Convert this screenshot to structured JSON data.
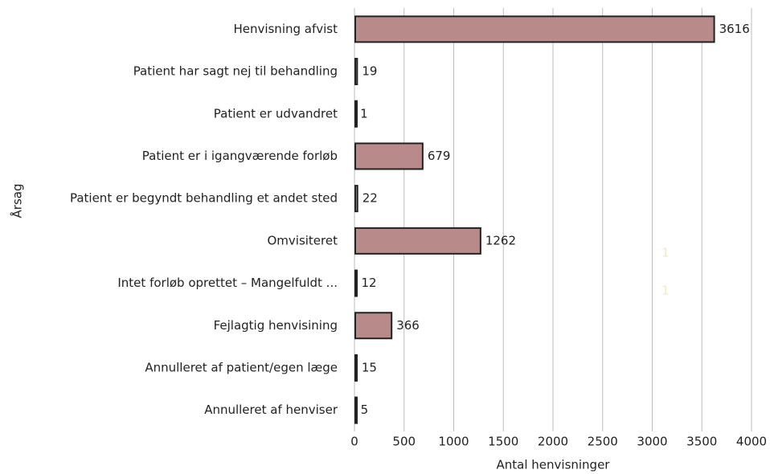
{
  "chart_data": {
    "type": "bar",
    "orientation": "horizontal",
    "categories": [
      "Henvisning afvist",
      "Patient har sagt nej til behandling",
      "Patient er udvandret",
      "Patient er i igangværende forløb",
      "Patient er begyndt behandling et andet sted",
      "Omvisiteret",
      "Intet forløb oprettet – Mangelfuldt ...",
      "Fejlagtig henvisining",
      "Annulleret af patient/egen læge",
      "Annulleret af henviser"
    ],
    "values": [
      3616,
      19,
      1,
      679,
      22,
      1262,
      12,
      366,
      15,
      5
    ],
    "color": "#b88a8a",
    "xlabel": "Antal henvisninger",
    "ylabel": "Årsag",
    "xlim": [
      0,
      4000
    ],
    "xticks": [
      0,
      500,
      1000,
      1500,
      2000,
      2500,
      3000,
      3500,
      4000
    ],
    "grid": true,
    "annotations": [
      "1",
      "1"
    ]
  }
}
